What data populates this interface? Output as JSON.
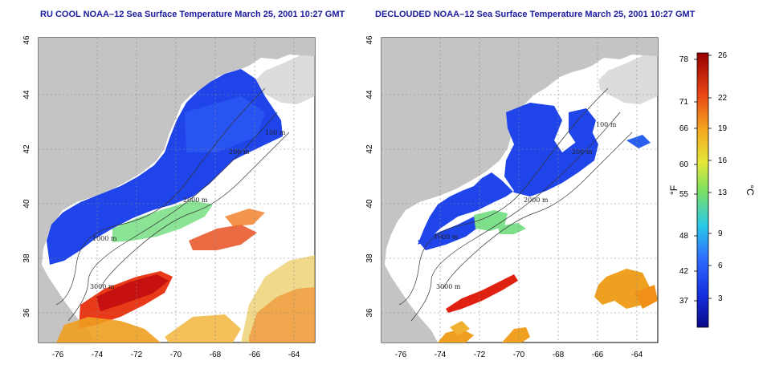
{
  "titles": {
    "left": "RU COOL NOAA–12 Sea Surface Temperature March 25, 2001 10:27 GMT",
    "right": "DECLOUDED NOAA–12 Sea Surface Temperature March 25, 2001 10:27 GMT"
  },
  "axes": {
    "lon_ticks": [
      "-76",
      "-74",
      "-72",
      "-70",
      "-68",
      "-66",
      "-64"
    ],
    "lat_ticks": [
      "36",
      "38",
      "40",
      "42",
      "44",
      "46"
    ]
  },
  "contour_labels": {
    "left": [
      "100 m",
      "200 m",
      "2000 m",
      "3000 m",
      "1000 m"
    ],
    "right": [
      "100 m",
      "200 m",
      "2000 m",
      "3000 m",
      "1000 m"
    ]
  },
  "colorbar": {
    "fahrenheit_ticks": [
      "78",
      "71",
      "66",
      "60",
      "55",
      "48",
      "42",
      "37"
    ],
    "celsius_ticks": [
      "26",
      "22",
      "19",
      "16",
      "13",
      "9",
      "6",
      "3"
    ],
    "fahrenheit_unit": "°F",
    "celsius_unit": "°C"
  },
  "colors": {
    "land": "#c4c4c4",
    "ocean_cold": "#1a3fe8",
    "ocean_warm": "#e82010",
    "title": "#1a1aa0"
  }
}
